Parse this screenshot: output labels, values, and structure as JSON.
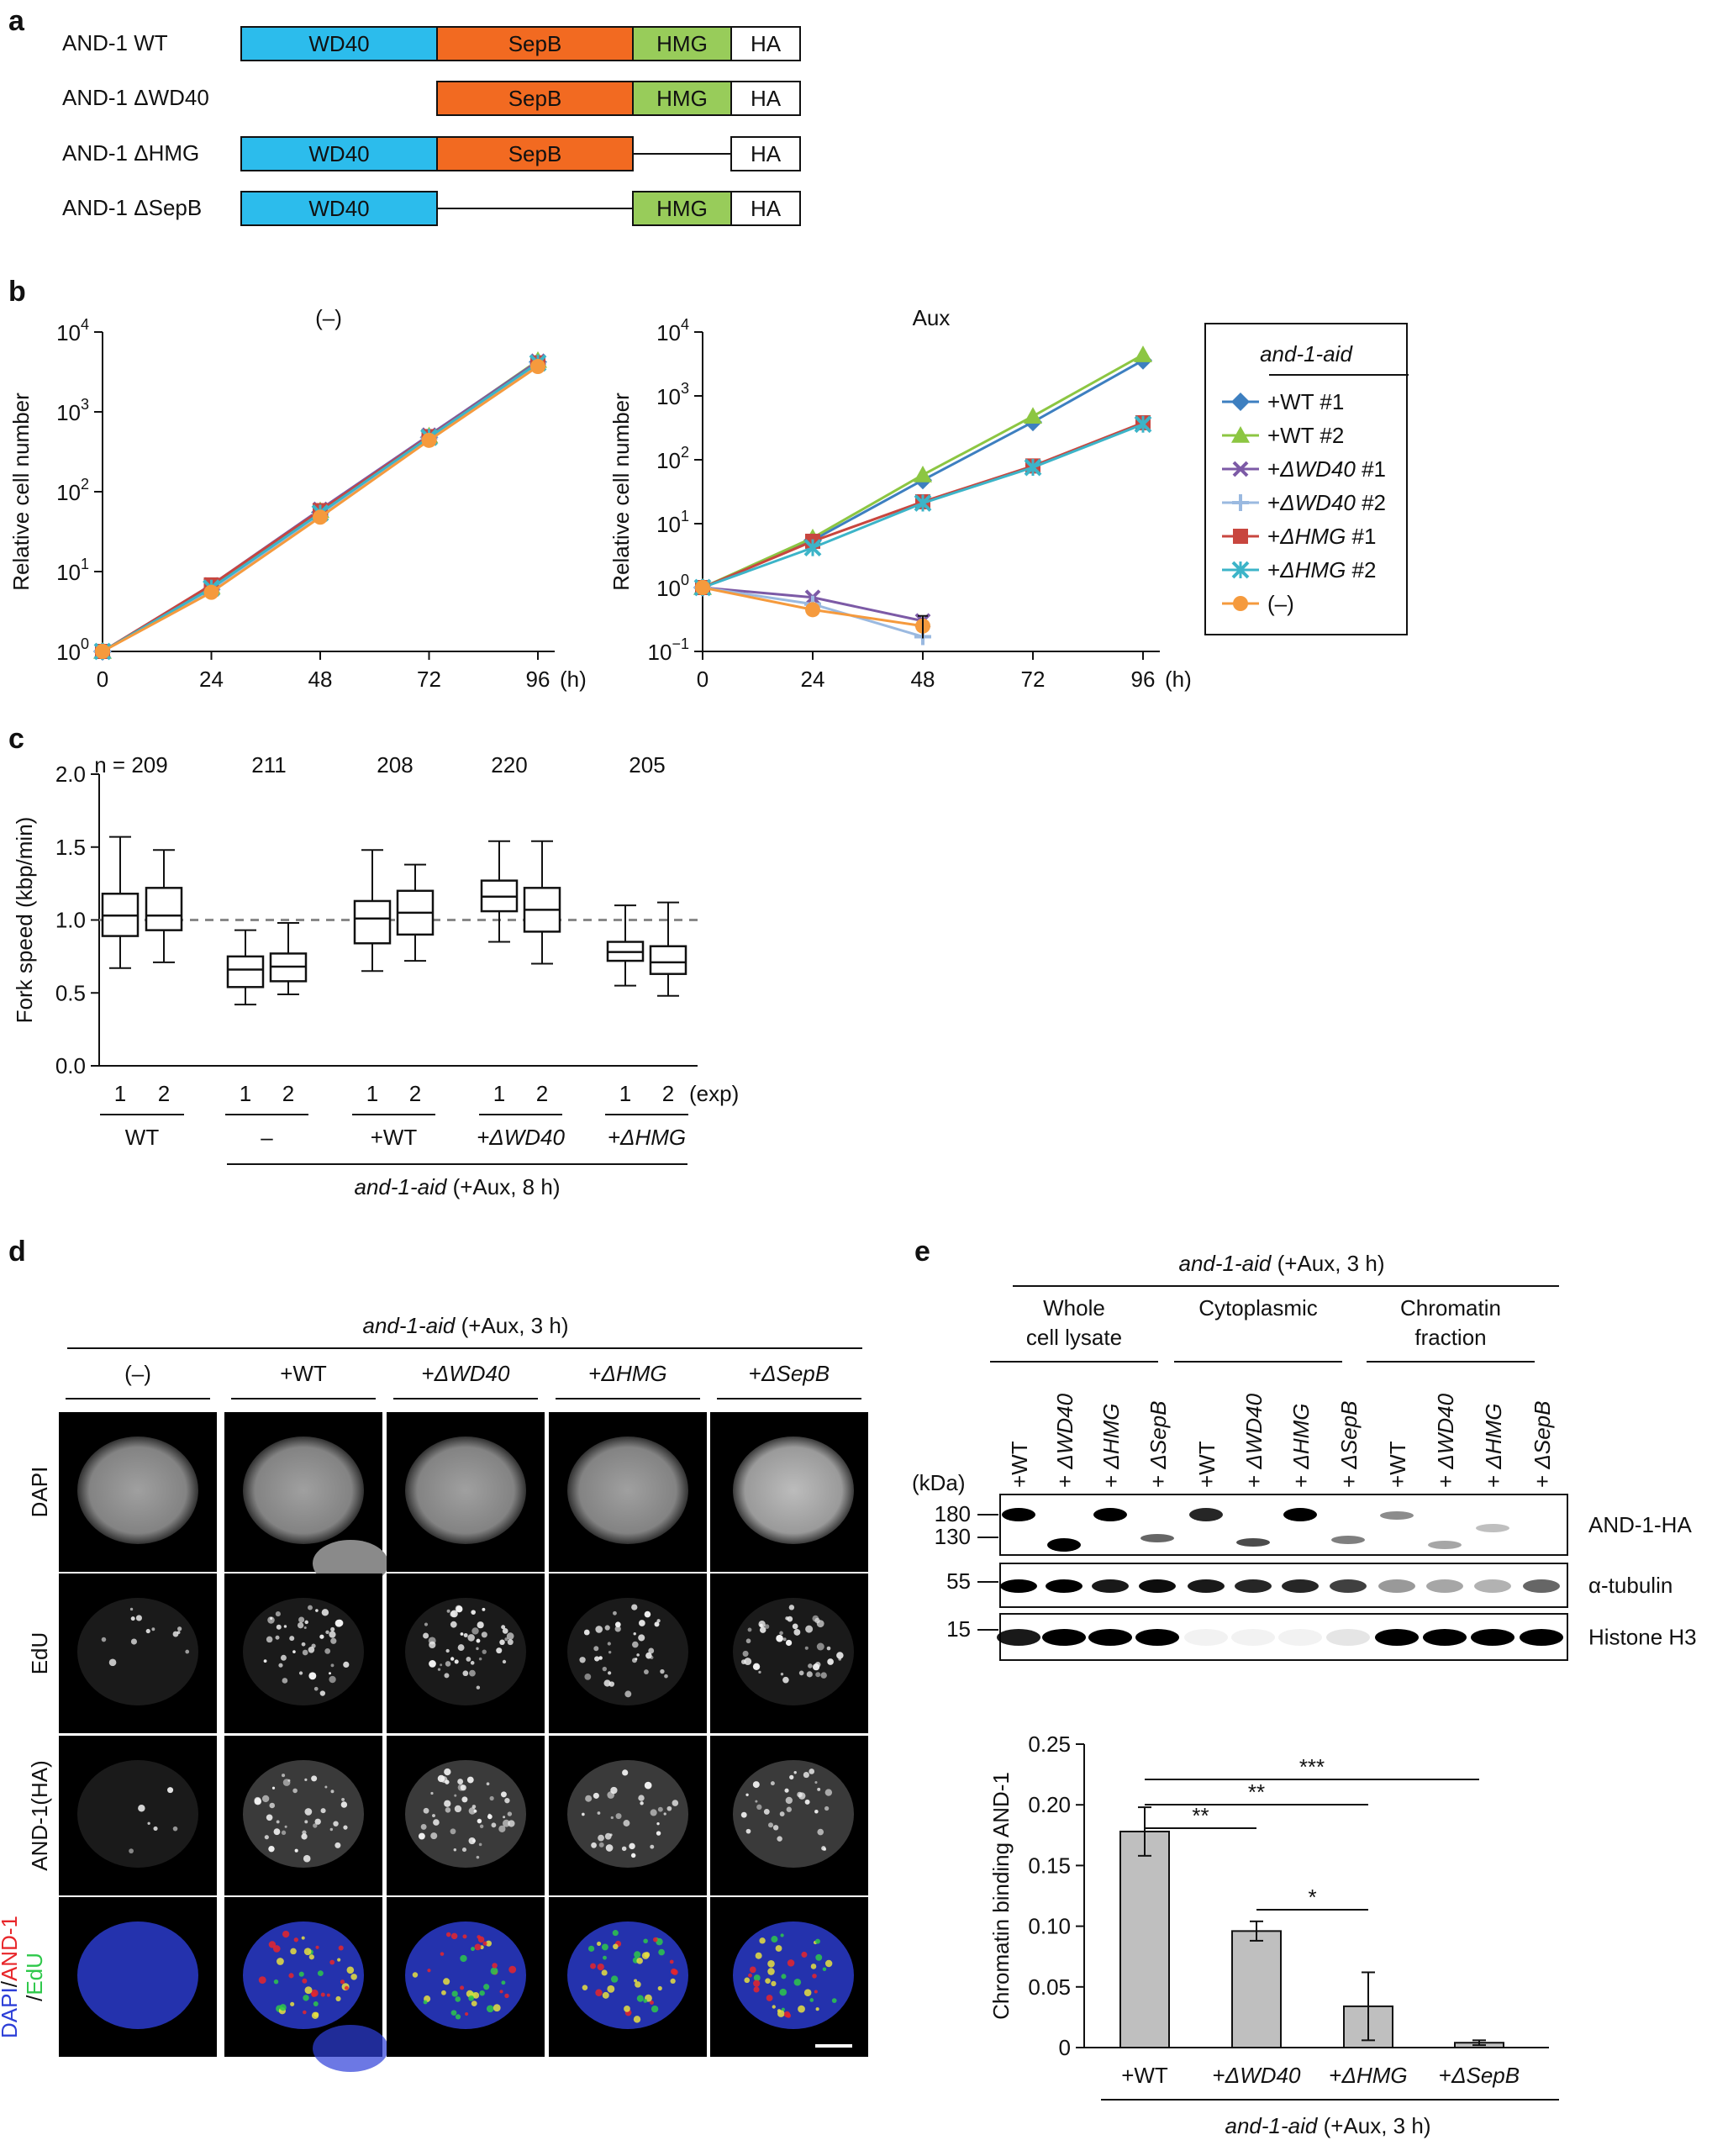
{
  "panel_letters": {
    "a": "a",
    "b": "b",
    "c": "c",
    "d": "d",
    "e": "e"
  },
  "colors": {
    "wd40": "#2cbcec",
    "sepb": "#f26a21",
    "hmg": "#98cc5a",
    "ha": "#ffffff",
    "bar": "#bfbfbf",
    "dapi": "#2d3fd8",
    "and1": "#e8262a",
    "edu": "#2ec84a"
  },
  "domains": {
    "rows": [
      {
        "label": "AND-1 WT",
        "segments": [
          "WD40",
          "SepB",
          "HMG",
          "HA"
        ]
      },
      {
        "label": "AND-1 ΔWD40",
        "segments": [
          "SepB",
          "HMG",
          "HA"
        ]
      },
      {
        "label": "AND-1 ΔHMG",
        "segments": [
          "WD40",
          "SepB",
          "HA"
        ]
      },
      {
        "label": "AND-1 ΔSepB",
        "segments": [
          "WD40",
          "HMG",
          "HA"
        ]
      }
    ]
  },
  "chart_data": [
    {
      "id": "growth-minus",
      "type": "line",
      "title": "(–)",
      "ylabel": "Relative cell number",
      "xunit": "(h)",
      "yscale": "log",
      "ylim": [
        1,
        10000
      ],
      "x": [
        0,
        24,
        48,
        72,
        96
      ],
      "series": [
        {
          "name": "+WT #1",
          "values": [
            1,
            6,
            55,
            480,
            4200
          ]
        },
        {
          "name": "+WT #2",
          "values": [
            1,
            6.5,
            58,
            500,
            4400
          ]
        },
        {
          "name": "+ΔWD40 #1",
          "values": [
            1,
            6.8,
            60,
            510,
            4300
          ]
        },
        {
          "name": "+ΔWD40 #2",
          "values": [
            1,
            6,
            52,
            470,
            4000
          ]
        },
        {
          "name": "+ΔHMG #1",
          "values": [
            1,
            6.8,
            58,
            490,
            4100
          ]
        },
        {
          "name": "+ΔHMG #2",
          "values": [
            1,
            6.2,
            54,
            480,
            4100
          ]
        },
        {
          "name": "(–)",
          "values": [
            1,
            5.5,
            48,
            440,
            3700
          ]
        }
      ]
    },
    {
      "id": "growth-aux",
      "type": "line",
      "title": "Aux",
      "ylabel": "Relative cell number",
      "xunit": "(h)",
      "yscale": "log",
      "ylim": [
        0.1,
        10000
      ],
      "x": [
        0,
        24,
        48,
        72,
        96
      ],
      "series": [
        {
          "name": "+WT #1",
          "values": [
            1,
            5.5,
            48,
            390,
            3600
          ]
        },
        {
          "name": "+WT #2",
          "values": [
            1,
            6,
            58,
            480,
            4400
          ]
        },
        {
          "name": "+ΔWD40 #1",
          "values": [
            1,
            0.7,
            0.3,
            null,
            null
          ]
        },
        {
          "name": "+ΔWD40 #2",
          "values": [
            1,
            0.55,
            0.17,
            null,
            null
          ]
        },
        {
          "name": "+ΔHMG #1",
          "values": [
            1,
            5.3,
            22,
            80,
            380
          ]
        },
        {
          "name": "+ΔHMG #2",
          "values": [
            1,
            4.2,
            21,
            76,
            360
          ]
        },
        {
          "name": "(–)",
          "values": [
            1,
            0.45,
            0.25,
            null,
            null
          ]
        }
      ],
      "legend": {
        "title": "and-1-aid",
        "placement": "right",
        "entries": [
          {
            "prefix": "+WT",
            "italic": "",
            "suffix": " #1"
          },
          {
            "prefix": "+WT",
            "italic": "",
            "suffix": " #2"
          },
          {
            "prefix": "+",
            "italic": "ΔWD40",
            "suffix": " #1"
          },
          {
            "prefix": "+",
            "italic": "ΔWD40",
            "suffix": " #2"
          },
          {
            "prefix": "+",
            "italic": "ΔHMG",
            "suffix": " #1"
          },
          {
            "prefix": "+",
            "italic": "ΔHMG",
            "suffix": " #2"
          },
          {
            "prefix": "(–)",
            "italic": "",
            "suffix": ""
          }
        ]
      }
    },
    {
      "id": "fork-speed",
      "type": "box",
      "ylabel": "Fork speed (kbp/min)",
      "ylim": [
        0,
        2
      ],
      "yticks": [
        "0.0",
        "0.5",
        "1.0",
        "1.5",
        "2.0"
      ],
      "reference_line": 1.0,
      "n_labels": [
        "n = 209",
        "211",
        "208",
        "220",
        "205"
      ],
      "groups": [
        {
          "label": "WT",
          "italic": false,
          "boxes": [
            {
              "exp": "1",
              "min": 0.67,
              "q1": 0.89,
              "median": 1.03,
              "q3": 1.18,
              "max": 1.57
            },
            {
              "exp": "2",
              "min": 0.71,
              "q1": 0.93,
              "median": 1.03,
              "q3": 1.22,
              "max": 1.48
            }
          ]
        },
        {
          "label": "–",
          "italic": false,
          "boxes": [
            {
              "exp": "1",
              "min": 0.42,
              "q1": 0.54,
              "median": 0.66,
              "q3": 0.75,
              "max": 0.93
            },
            {
              "exp": "2",
              "min": 0.49,
              "q1": 0.58,
              "median": 0.68,
              "q3": 0.77,
              "max": 0.98
            }
          ]
        },
        {
          "label": "+WT",
          "italic": false,
          "boxes": [
            {
              "exp": "1",
              "min": 0.65,
              "q1": 0.84,
              "median": 1.01,
              "q3": 1.13,
              "max": 1.48
            },
            {
              "exp": "2",
              "min": 0.72,
              "q1": 0.9,
              "median": 1.05,
              "q3": 1.2,
              "max": 1.38
            }
          ]
        },
        {
          "label": "+ΔWD40",
          "italic": true,
          "boxes": [
            {
              "exp": "1",
              "min": 0.85,
              "q1": 1.06,
              "median": 1.16,
              "q3": 1.27,
              "max": 1.54
            },
            {
              "exp": "2",
              "min": 0.7,
              "q1": 0.92,
              "median": 1.07,
              "q3": 1.22,
              "max": 1.54
            }
          ]
        },
        {
          "label": "+ΔHMG",
          "italic": true,
          "boxes": [
            {
              "exp": "1",
              "min": 0.55,
              "q1": 0.72,
              "median": 0.78,
              "q3": 0.85,
              "max": 1.1
            },
            {
              "exp": "2",
              "min": 0.48,
              "q1": 0.63,
              "median": 0.71,
              "q3": 0.82,
              "max": 1.12
            }
          ]
        }
      ],
      "exp_unit": "(exp)",
      "footer": {
        "italic": "and-1-aid",
        "rest": " (+Aux, 8 h)"
      }
    },
    {
      "id": "chromatin-binding",
      "type": "bar",
      "ylabel": "Chromatin binding AND-1",
      "ylim": [
        0,
        0.25
      ],
      "yticks": [
        "0",
        "0.05",
        "0.10",
        "0.15",
        "0.20",
        "0.25"
      ],
      "categories": [
        "+WT",
        "+ΔWD40",
        "+ΔHMG",
        "+ΔSepB"
      ],
      "values": [
        0.178,
        0.096,
        0.034,
        0.004
      ],
      "errors": [
        0.02,
        0.008,
        0.028,
        0.002
      ],
      "significance": [
        {
          "from": 0,
          "to": 1,
          "label": "**"
        },
        {
          "from": 0,
          "to": 2,
          "label": "**"
        },
        {
          "from": 0,
          "to": 3,
          "label": "***"
        },
        {
          "from": 1,
          "to": 2,
          "label": "*"
        }
      ],
      "footer": {
        "italic": "and-1-aid",
        "rest": " (+Aux, 3 h)"
      }
    }
  ],
  "microscopy": {
    "header": {
      "italic": "and-1-aid",
      "rest": " (+Aux, 3 h)"
    },
    "columns": [
      {
        "prefix": "(–)",
        "italic": ""
      },
      {
        "prefix": "+WT",
        "italic": ""
      },
      {
        "prefix": "+",
        "italic": "ΔWD40"
      },
      {
        "prefix": "+",
        "italic": "ΔHMG"
      },
      {
        "prefix": "+",
        "italic": "ΔSepB"
      }
    ],
    "rows": [
      "DAPI",
      "EdU",
      "AND-1(HA)"
    ],
    "merge_label": {
      "dapi": "DAPI",
      "sep1": "/",
      "and1": "AND-1",
      "sep2": "/",
      "edu": "EdU"
    }
  },
  "western": {
    "header": {
      "italic": "and-1-aid",
      "rest": " (+Aux, 3 h)"
    },
    "fractions": [
      [
        "Whole",
        "cell lysate"
      ],
      [
        "Cytoplasmic",
        ""
      ],
      [
        "Chromatin",
        "fraction"
      ]
    ],
    "lanes": [
      {
        "prefix": "+WT",
        "italic": ""
      },
      {
        "prefix": "+ ",
        "italic": "ΔWD40"
      },
      {
        "prefix": "+ ",
        "italic": "ΔHMG"
      },
      {
        "prefix": "+ ",
        "italic": "ΔSepB"
      }
    ],
    "kda_label": "(kDa)",
    "markers": [
      "180",
      "130",
      "55",
      "15"
    ],
    "blots": [
      "AND-1-HA",
      "α-tubulin",
      "Histone H3"
    ]
  }
}
